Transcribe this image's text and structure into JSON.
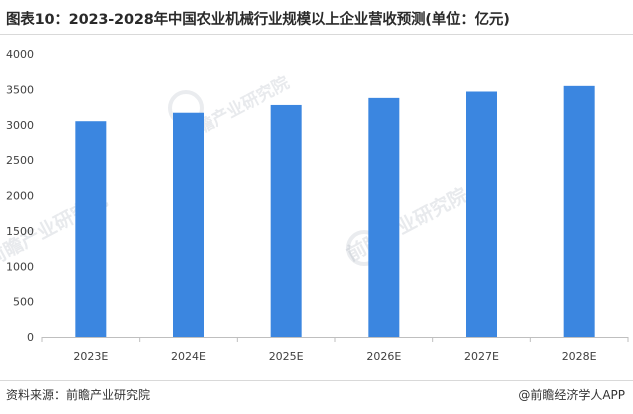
{
  "title": "图表10：2023-2028年中国农业机械行业规模以上企业营收预测(单位：亿元)",
  "source": "资料来源：前瞻产业研究院",
  "credit": "@前瞻经济学人APP",
  "watermark": "前瞻产业研究院",
  "colors": {
    "bar": "#3b86e0",
    "axis": "#bfbfbf",
    "tick_text": "#404040"
  },
  "chart_data": {
    "type": "bar",
    "categories": [
      "2023E",
      "2024E",
      "2025E",
      "2026E",
      "2027E",
      "2028E"
    ],
    "values": [
      3050,
      3170,
      3280,
      3380,
      3470,
      3550
    ],
    "yticks": [
      0,
      500,
      1000,
      1500,
      2000,
      2500,
      3000,
      3500,
      4000
    ],
    "ylim": [
      0,
      4000
    ],
    "grid": false,
    "title": "图表10：2023-2028年中国农业机械行业规模以上企业营收预测(单位：亿元)"
  }
}
